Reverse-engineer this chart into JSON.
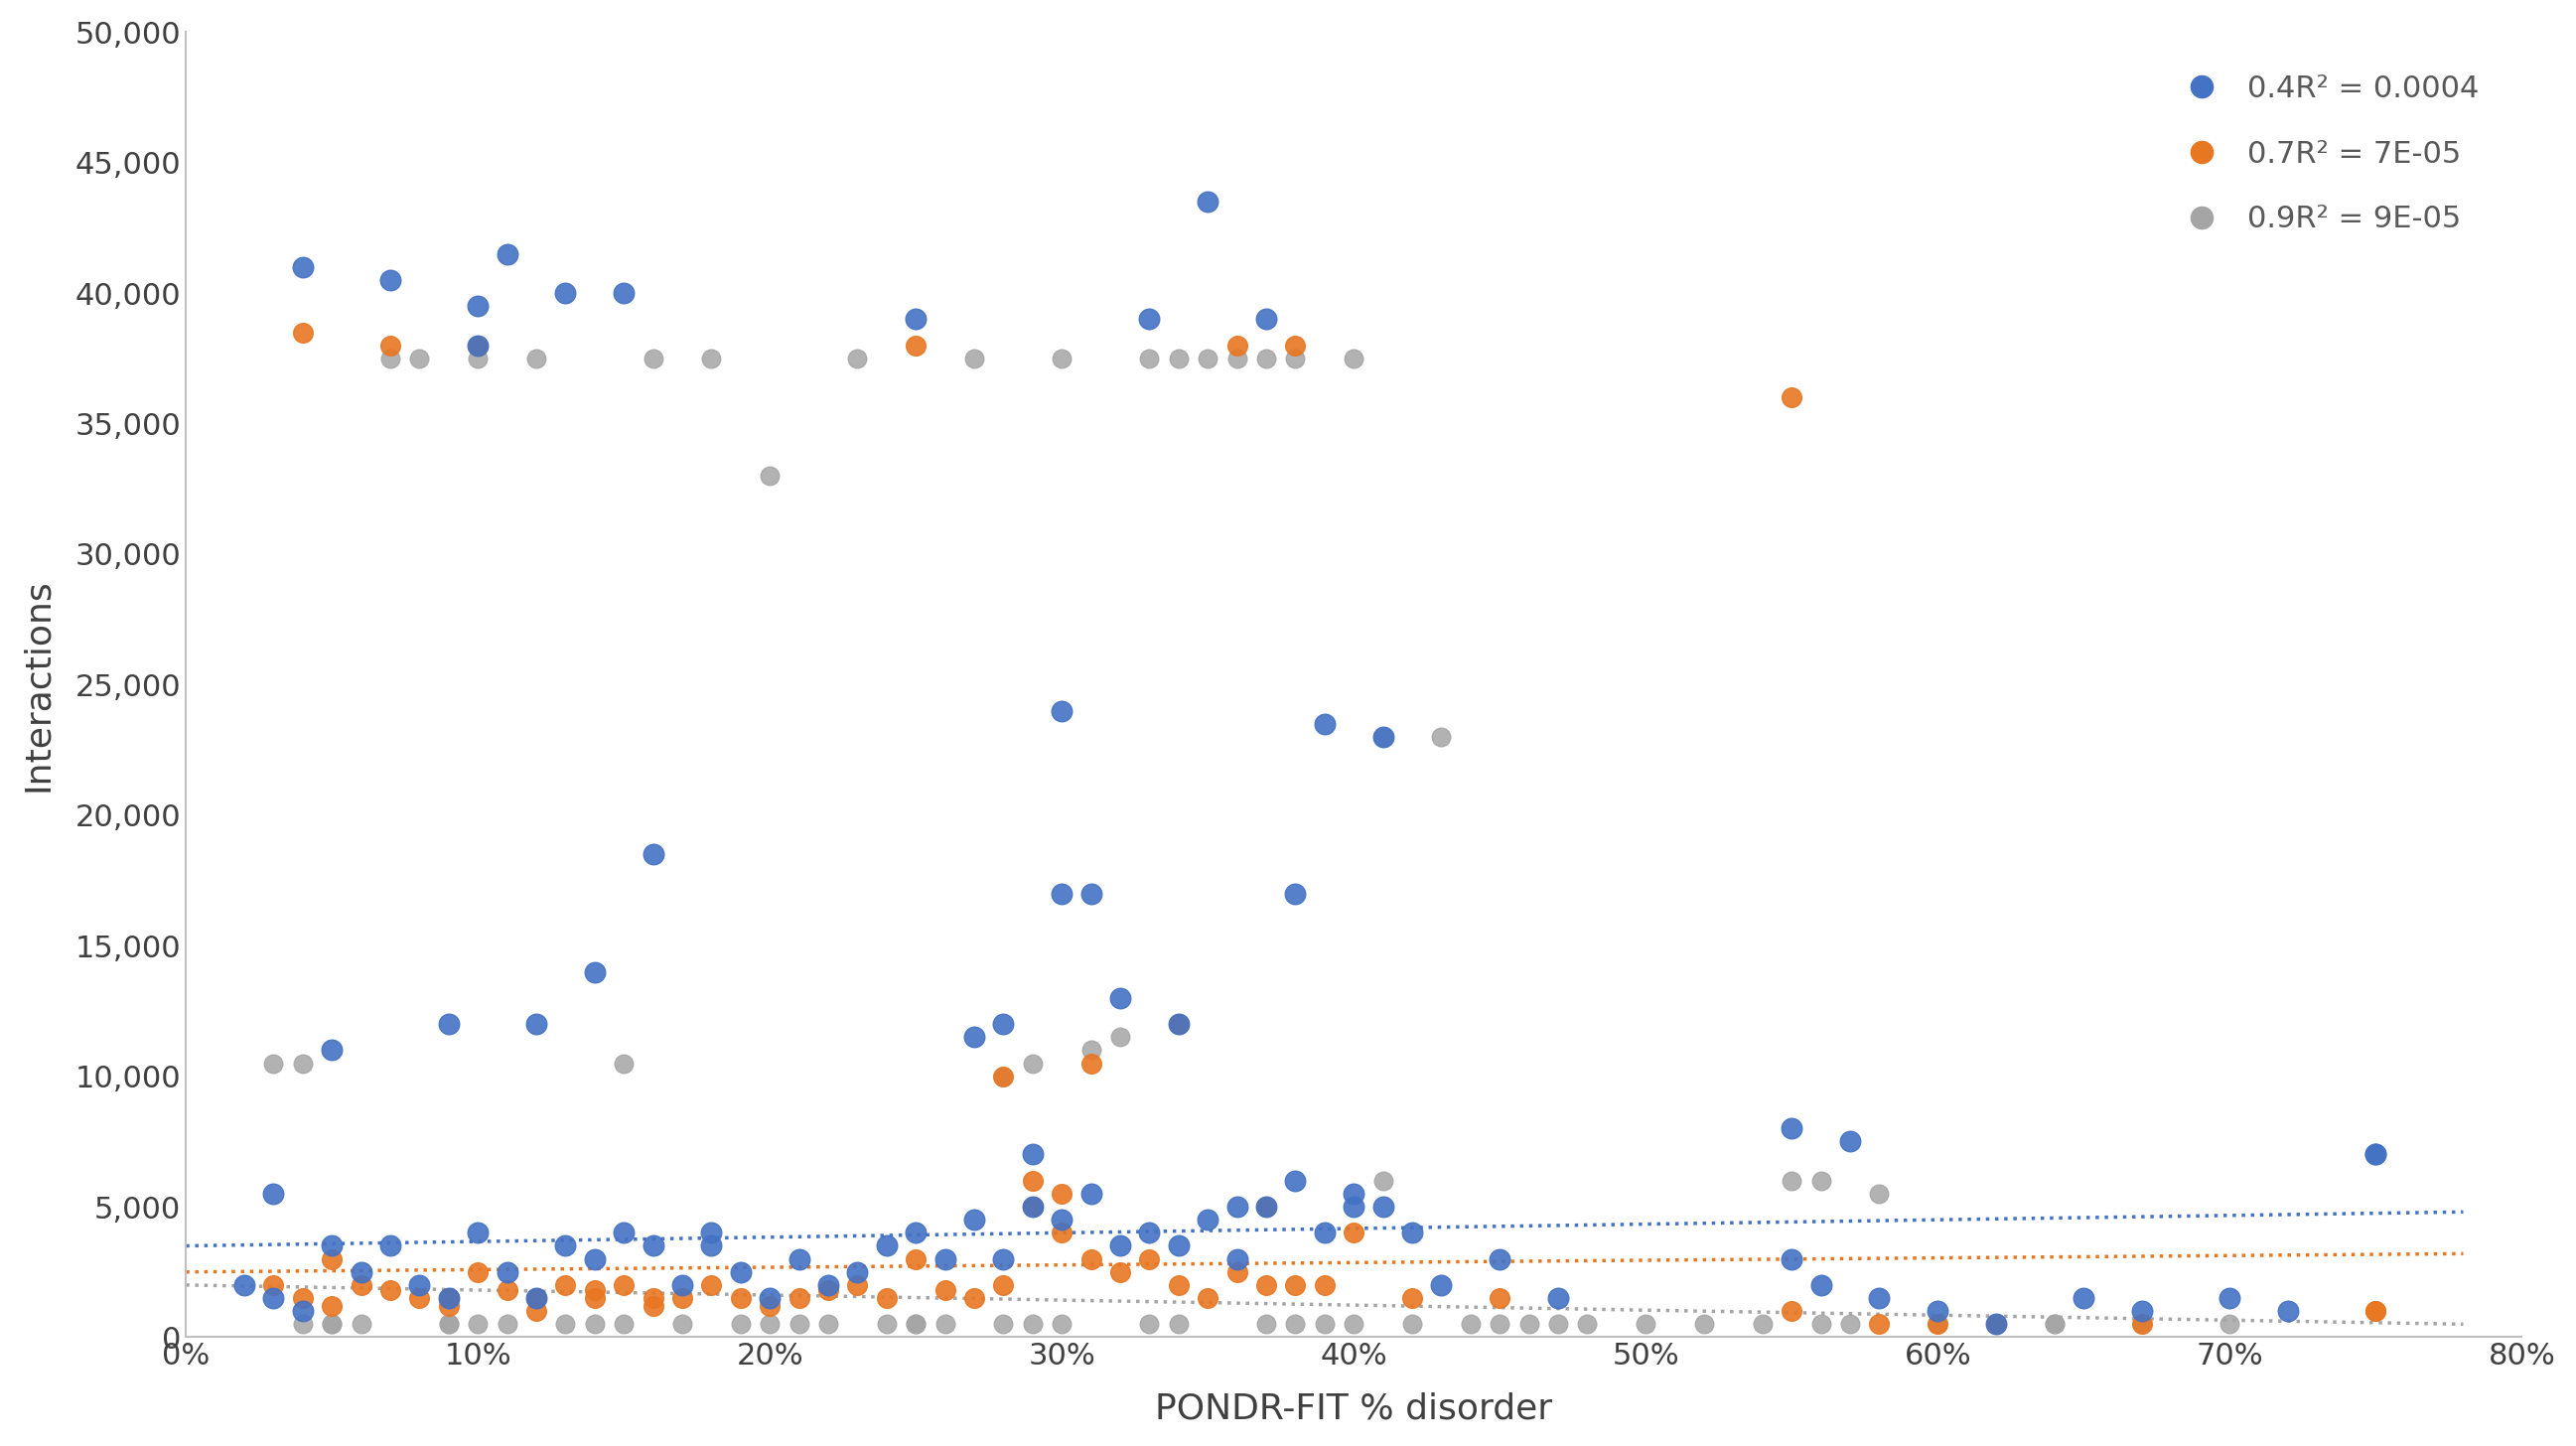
{
  "blue_x": [
    0.03,
    0.04,
    0.05,
    0.07,
    0.09,
    0.1,
    0.1,
    0.11,
    0.12,
    0.13,
    0.14,
    0.15,
    0.16,
    0.18,
    0.25,
    0.27,
    0.28,
    0.29,
    0.3,
    0.3,
    0.31,
    0.32,
    0.33,
    0.34,
    0.35,
    0.36,
    0.37,
    0.38,
    0.39,
    0.4,
    0.41,
    0.42,
    0.55,
    0.57,
    0.75,
    0.02,
    0.03,
    0.04,
    0.05,
    0.06,
    0.07,
    0.08,
    0.09,
    0.1,
    0.11,
    0.12,
    0.13,
    0.14,
    0.15,
    0.16,
    0.17,
    0.18,
    0.19,
    0.2,
    0.21,
    0.22,
    0.23,
    0.24,
    0.25,
    0.26,
    0.27,
    0.28,
    0.29,
    0.3,
    0.31,
    0.32,
    0.33,
    0.34,
    0.35,
    0.36,
    0.37,
    0.38,
    0.39,
    0.4,
    0.41,
    0.43,
    0.45,
    0.47,
    0.55,
    0.56,
    0.58,
    0.6,
    0.62,
    0.65,
    0.67,
    0.7,
    0.72,
    0.75
  ],
  "blue_y": [
    5500,
    41000,
    11000,
    40500,
    12000,
    38000,
    39500,
    41500,
    12000,
    40000,
    14000,
    40000,
    18500,
    3500,
    39000,
    11500,
    12000,
    7000,
    24000,
    17000,
    17000,
    13000,
    39000,
    12000,
    43500,
    5000,
    39000,
    17000,
    23500,
    5000,
    23000,
    4000,
    8000,
    7500,
    7000,
    2000,
    1500,
    1000,
    3500,
    2500,
    3500,
    2000,
    1500,
    4000,
    2500,
    1500,
    3500,
    3000,
    4000,
    3500,
    2000,
    4000,
    2500,
    1500,
    3000,
    2000,
    2500,
    3500,
    4000,
    3000,
    4500,
    3000,
    5000,
    4500,
    5500,
    3500,
    4000,
    3500,
    4500,
    3000,
    5000,
    6000,
    4000,
    5500,
    5000,
    2000,
    3000,
    1500,
    3000,
    2000,
    1500,
    1000,
    500,
    1500,
    1000,
    1500,
    1000,
    7000
  ],
  "orange_x": [
    0.04,
    0.05,
    0.07,
    0.09,
    0.1,
    0.12,
    0.14,
    0.16,
    0.25,
    0.28,
    0.29,
    0.3,
    0.31,
    0.34,
    0.36,
    0.37,
    0.38,
    0.55,
    0.75,
    0.03,
    0.04,
    0.05,
    0.06,
    0.07,
    0.08,
    0.09,
    0.1,
    0.11,
    0.12,
    0.13,
    0.14,
    0.15,
    0.16,
    0.17,
    0.18,
    0.19,
    0.2,
    0.21,
    0.22,
    0.23,
    0.24,
    0.25,
    0.26,
    0.27,
    0.28,
    0.29,
    0.3,
    0.31,
    0.32,
    0.33,
    0.34,
    0.35,
    0.36,
    0.37,
    0.38,
    0.39,
    0.4,
    0.42,
    0.45,
    0.55,
    0.58,
    0.6,
    0.62,
    0.67,
    0.75
  ],
  "orange_y": [
    38500,
    3000,
    38000,
    1500,
    38000,
    1000,
    1500,
    1200,
    38000,
    10000,
    6000,
    5500,
    10500,
    12000,
    38000,
    5000,
    38000,
    36000,
    1000,
    2000,
    1500,
    1200,
    2000,
    1800,
    1500,
    1200,
    2500,
    1800,
    1500,
    2000,
    1800,
    2000,
    1500,
    1500,
    2000,
    1500,
    1200,
    1500,
    1800,
    2000,
    1500,
    3000,
    1800,
    1500,
    2000,
    5000,
    4000,
    3000,
    2500,
    3000,
    2000,
    1500,
    2500,
    2000,
    2000,
    2000,
    4000,
    1500,
    1500,
    1000,
    500,
    500,
    500,
    500,
    1000
  ],
  "gray_x": [
    0.03,
    0.04,
    0.05,
    0.06,
    0.07,
    0.08,
    0.09,
    0.1,
    0.11,
    0.12,
    0.13,
    0.14,
    0.15,
    0.16,
    0.17,
    0.18,
    0.19,
    0.2,
    0.21,
    0.22,
    0.23,
    0.24,
    0.25,
    0.26,
    0.27,
    0.28,
    0.29,
    0.3,
    0.31,
    0.32,
    0.33,
    0.34,
    0.35,
    0.36,
    0.37,
    0.38,
    0.39,
    0.4,
    0.41,
    0.42,
    0.43,
    0.44,
    0.45,
    0.46,
    0.47,
    0.48,
    0.5,
    0.52,
    0.54,
    0.56,
    0.58,
    0.6,
    0.62,
    0.64,
    0.67,
    0.7,
    0.04,
    0.05,
    0.09,
    0.1,
    0.15,
    0.2,
    0.25,
    0.28,
    0.29,
    0.3,
    0.33,
    0.34,
    0.37,
    0.38,
    0.4,
    0.41,
    0.55,
    0.56,
    0.57,
    0.6,
    0.62,
    0.64
  ],
  "gray_y": [
    10500,
    10500,
    500,
    500,
    37500,
    37500,
    500,
    37500,
    500,
    37500,
    500,
    500,
    10500,
    37500,
    500,
    37500,
    500,
    33000,
    500,
    500,
    37500,
    500,
    500,
    500,
    37500,
    10000,
    10500,
    37500,
    11000,
    11500,
    37500,
    37500,
    37500,
    37500,
    37500,
    37500,
    500,
    37500,
    23000,
    500,
    23000,
    500,
    500,
    500,
    500,
    500,
    500,
    500,
    500,
    6000,
    5500,
    500,
    500,
    500,
    500,
    500,
    500,
    500,
    500,
    500,
    500,
    500,
    500,
    500,
    500,
    500,
    500,
    500,
    500,
    500,
    500,
    6000,
    6000,
    500,
    500,
    500,
    500,
    500
  ],
  "blue_trend_x": [
    0.0,
    0.78
  ],
  "blue_trend_y": [
    3500,
    4800
  ],
  "orange_trend_x": [
    0.0,
    0.78
  ],
  "orange_trend_y": [
    2500,
    3200
  ],
  "gray_trend_x": [
    0.0,
    0.78
  ],
  "gray_trend_y": [
    2000,
    500
  ],
  "blue_color": "#4472C4",
  "orange_color": "#E87722",
  "gray_color": "#A5A5A5",
  "blue_label": "0.4R² = 0.0004",
  "orange_label": "0.7R² = 7E-05",
  "gray_label": "0.9R² = 9E-05",
  "xlabel": "PONDR-FIT % disorder",
  "ylabel": "Interactions",
  "ylim": [
    0,
    50000
  ],
  "xlim": [
    0.0,
    0.8
  ],
  "yticks": [
    0,
    5000,
    10000,
    15000,
    20000,
    25000,
    30000,
    35000,
    40000,
    45000,
    50000
  ],
  "xticks": [
    0.0,
    0.1,
    0.2,
    0.3,
    0.4,
    0.5,
    0.6,
    0.7,
    0.8
  ],
  "background_color": "#ffffff"
}
